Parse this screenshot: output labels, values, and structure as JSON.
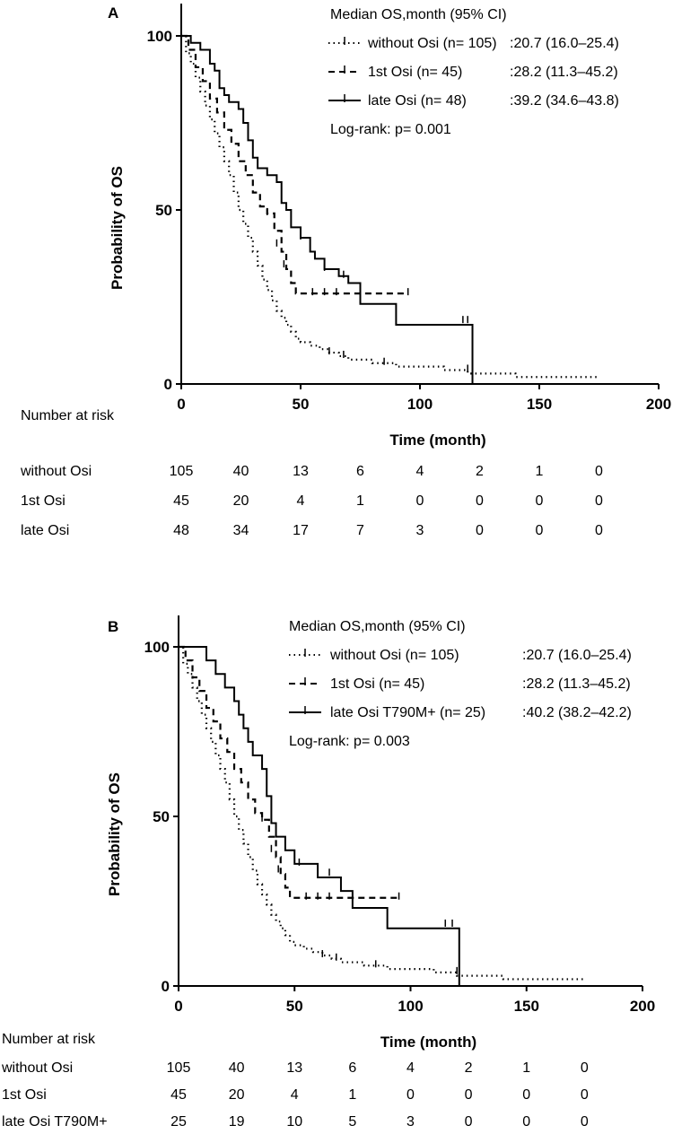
{
  "chart_data": [
    {
      "type": "line",
      "panel_label": "A",
      "xlabel": "Time (month)",
      "ylabel": "Probability of OS",
      "xlim": [
        0,
        200
      ],
      "ylim": [
        0,
        100
      ],
      "xticks": [
        "0",
        "50",
        "100",
        "150",
        "200"
      ],
      "yticks": [
        "0",
        "50",
        "100"
      ],
      "legend_title": "Median OS,month (95% CI)",
      "log_rank": "Log-rank: p= 0.001",
      "series": [
        {
          "name": "without Osi (n= 105)",
          "median": ":20.7 (16.0–25.4)",
          "style": "dotted",
          "points": [
            [
              0,
              100
            ],
            [
              2,
              95
            ],
            [
              4,
              92
            ],
            [
              6,
              88
            ],
            [
              8,
              84
            ],
            [
              10,
              80
            ],
            [
              12,
              76
            ],
            [
              14,
              72
            ],
            [
              16,
              68
            ],
            [
              18,
              64
            ],
            [
              20,
              60
            ],
            [
              22,
              55
            ],
            [
              24,
              50
            ],
            [
              26,
              46
            ],
            [
              28,
              42
            ],
            [
              30,
              38
            ],
            [
              32,
              34
            ],
            [
              34,
              30
            ],
            [
              36,
              27
            ],
            [
              38,
              24
            ],
            [
              40,
              21
            ],
            [
              42,
              19
            ],
            [
              44,
              17
            ],
            [
              46,
              15
            ],
            [
              48,
              13
            ],
            [
              50,
              12
            ],
            [
              54,
              11
            ],
            [
              58,
              10
            ],
            [
              62,
              9
            ],
            [
              66,
              8
            ],
            [
              70,
              7
            ],
            [
              80,
              6
            ],
            [
              90,
              5
            ],
            [
              100,
              5
            ],
            [
              110,
              4
            ],
            [
              120,
              3
            ],
            [
              135,
              3
            ],
            [
              140,
              2
            ],
            [
              175,
              2
            ]
          ],
          "censored": [
            [
              62,
              9
            ],
            [
              68,
              8
            ],
            [
              85,
              6
            ],
            [
              120,
              4
            ]
          ]
        },
        {
          "name": "1st Osi (n= 45)",
          "median": ":28.2 (11.3–45.2)",
          "style": "dashed",
          "points": [
            [
              0,
              100
            ],
            [
              3,
              96
            ],
            [
              6,
              91
            ],
            [
              9,
              87
            ],
            [
              12,
              82
            ],
            [
              15,
              78
            ],
            [
              18,
              73
            ],
            [
              21,
              69
            ],
            [
              24,
              64
            ],
            [
              27,
              60
            ],
            [
              30,
              55
            ],
            [
              33,
              51
            ],
            [
              36,
              49
            ],
            [
              39,
              44
            ],
            [
              42,
              38
            ],
            [
              44,
              33
            ],
            [
              46,
              29
            ],
            [
              48,
              26
            ],
            [
              95,
              26
            ]
          ],
          "censored": [
            [
              36,
              49
            ],
            [
              40,
              40
            ],
            [
              43,
              34
            ],
            [
              55,
              26
            ],
            [
              60,
              26
            ],
            [
              65,
              26
            ],
            [
              75,
              26
            ],
            [
              95,
              26
            ]
          ]
        },
        {
          "name": "late Osi (n= 48)",
          "median": ":39.2 (34.6–43.8)",
          "style": "solid",
          "points": [
            [
              0,
              100
            ],
            [
              4,
              98
            ],
            [
              8,
              96
            ],
            [
              12,
              92
            ],
            [
              14,
              90
            ],
            [
              16,
              85
            ],
            [
              18,
              83
            ],
            [
              20,
              81
            ],
            [
              24,
              79
            ],
            [
              26,
              75
            ],
            [
              28,
              70
            ],
            [
              30,
              65
            ],
            [
              32,
              62
            ],
            [
              36,
              60
            ],
            [
              40,
              58
            ],
            [
              42,
              52
            ],
            [
              44,
              50
            ],
            [
              46,
              45
            ],
            [
              50,
              42
            ],
            [
              54,
              38
            ],
            [
              56,
              36
            ],
            [
              60,
              33
            ],
            [
              66,
              31
            ],
            [
              70,
              29
            ],
            [
              75,
              23
            ],
            [
              82,
              23
            ],
            [
              90,
              17
            ],
            [
              122,
              17
            ],
            [
              122,
              0
            ]
          ],
          "censored": [
            [
              50,
              42
            ],
            [
              60,
              33
            ],
            [
              68,
              31
            ],
            [
              118,
              18
            ],
            [
              120,
              18
            ]
          ]
        }
      ],
      "risk_table": {
        "title": "Number at risk",
        "time_points": [
          0,
          25,
          50,
          75,
          100,
          125,
          150,
          175
        ],
        "rows": [
          {
            "label": "without Osi",
            "values": [
              "105",
              "40",
              "13",
              "6",
              "4",
              "2",
              "1",
              "0"
            ]
          },
          {
            "label": "1st Osi",
            "values": [
              "45",
              "20",
              "4",
              "1",
              "0",
              "0",
              "0",
              "0"
            ]
          },
          {
            "label": "late Osi",
            "values": [
              "48",
              "34",
              "17",
              "7",
              "3",
              "0",
              "0",
              "0"
            ]
          }
        ]
      }
    },
    {
      "type": "line",
      "panel_label": "B",
      "xlabel": "Time (month)",
      "ylabel": "Probability of OS",
      "xlim": [
        0,
        200
      ],
      "ylim": [
        0,
        100
      ],
      "xticks": [
        "0",
        "50",
        "100",
        "150",
        "200"
      ],
      "yticks": [
        "0",
        "50",
        "100"
      ],
      "legend_title": "Median OS,month (95% CI)",
      "log_rank": "Log-rank: p= 0.003",
      "series": [
        {
          "name": "without Osi (n= 105)",
          "median": ":20.7 (16.0–25.4)",
          "style": "dotted",
          "points": [
            [
              0,
              100
            ],
            [
              2,
              95
            ],
            [
              4,
              92
            ],
            [
              6,
              88
            ],
            [
              8,
              84
            ],
            [
              10,
              80
            ],
            [
              12,
              76
            ],
            [
              14,
              72
            ],
            [
              16,
              68
            ],
            [
              18,
              64
            ],
            [
              20,
              60
            ],
            [
              22,
              55
            ],
            [
              24,
              50
            ],
            [
              26,
              46
            ],
            [
              28,
              42
            ],
            [
              30,
              38
            ],
            [
              32,
              34
            ],
            [
              34,
              30
            ],
            [
              36,
              27
            ],
            [
              38,
              24
            ],
            [
              40,
              21
            ],
            [
              42,
              19
            ],
            [
              44,
              17
            ],
            [
              46,
              15
            ],
            [
              48,
              13
            ],
            [
              50,
              12
            ],
            [
              54,
              11
            ],
            [
              58,
              10
            ],
            [
              62,
              9
            ],
            [
              66,
              8
            ],
            [
              70,
              7
            ],
            [
              80,
              6
            ],
            [
              90,
              5
            ],
            [
              100,
              5
            ],
            [
              110,
              4
            ],
            [
              120,
              3
            ],
            [
              135,
              3
            ],
            [
              140,
              2
            ],
            [
              175,
              2
            ]
          ],
          "censored": [
            [
              62,
              9
            ],
            [
              68,
              8
            ],
            [
              85,
              6
            ],
            [
              120,
              4
            ]
          ]
        },
        {
          "name": "1st Osi (n= 45)",
          "median": ":28.2 (11.3–45.2)",
          "style": "dashed",
          "points": [
            [
              0,
              100
            ],
            [
              3,
              96
            ],
            [
              6,
              91
            ],
            [
              9,
              87
            ],
            [
              12,
              82
            ],
            [
              15,
              78
            ],
            [
              18,
              73
            ],
            [
              21,
              69
            ],
            [
              24,
              64
            ],
            [
              27,
              60
            ],
            [
              30,
              55
            ],
            [
              33,
              51
            ],
            [
              36,
              49
            ],
            [
              39,
              44
            ],
            [
              42,
              38
            ],
            [
              44,
              33
            ],
            [
              46,
              29
            ],
            [
              48,
              26
            ],
            [
              95,
              26
            ]
          ],
          "censored": [
            [
              36,
              49
            ],
            [
              40,
              40
            ],
            [
              43,
              34
            ],
            [
              55,
              26
            ],
            [
              60,
              26
            ],
            [
              65,
              26
            ],
            [
              75,
              26
            ],
            [
              95,
              26
            ]
          ]
        },
        {
          "name": "late Osi T790M+ (n= 25)",
          "median": ":40.2 (38.2–42.2)",
          "style": "solid",
          "points": [
            [
              0,
              100
            ],
            [
              12,
              100
            ],
            [
              12,
              96
            ],
            [
              16,
              92
            ],
            [
              20,
              88
            ],
            [
              24,
              84
            ],
            [
              26,
              80
            ],
            [
              28,
              76
            ],
            [
              30,
              72
            ],
            [
              32,
              68
            ],
            [
              36,
              64
            ],
            [
              38,
              56
            ],
            [
              40,
              48
            ],
            [
              42,
              44
            ],
            [
              46,
              40
            ],
            [
              50,
              36
            ],
            [
              60,
              32
            ],
            [
              70,
              28
            ],
            [
              75,
              23
            ],
            [
              80,
              23
            ],
            [
              90,
              17
            ],
            [
              121,
              17
            ],
            [
              121,
              0
            ]
          ],
          "censored": [
            [
              52,
              36
            ],
            [
              65,
              33
            ],
            [
              115,
              18
            ],
            [
              118,
              18
            ]
          ]
        }
      ],
      "risk_table": {
        "title": "Number at risk",
        "time_points": [
          0,
          25,
          50,
          75,
          100,
          125,
          150,
          175
        ],
        "rows": [
          {
            "label": "without Osi",
            "values": [
              "105",
              "40",
              "13",
              "6",
              "4",
              "2",
              "1",
              "0"
            ]
          },
          {
            "label": "1st Osi",
            "values": [
              "45",
              "20",
              "4",
              "1",
              "0",
              "0",
              "0",
              "0"
            ]
          },
          {
            "label": "late Osi T790M+",
            "values": [
              "25",
              "19",
              "10",
              "5",
              "3",
              "0",
              "0",
              "0"
            ]
          }
        ]
      }
    }
  ]
}
